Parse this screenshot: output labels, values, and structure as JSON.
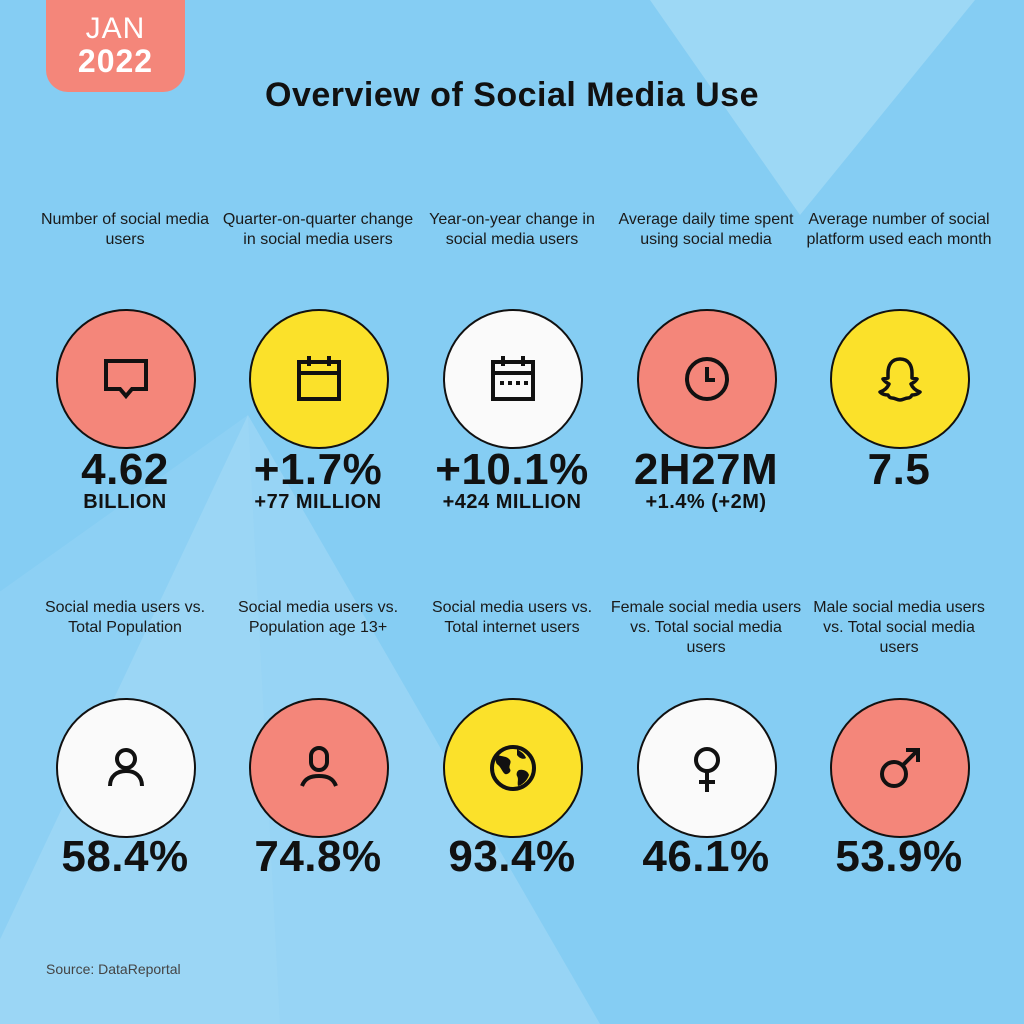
{
  "badge": {
    "month": "JAN",
    "year": "2022"
  },
  "title": "Overview of Social Media Use",
  "colors": {
    "background": "#85CDF3",
    "coral": "#F4867A",
    "yellow": "#FBE12A",
    "white": "#FAFAFA"
  },
  "stats_row1": [
    {
      "label": "Number of social media users",
      "icon": "chat-bubble-icon",
      "color": "coral",
      "value": "4.62",
      "sub": "BILLION"
    },
    {
      "label": "Quarter-on-quarter change in social media users",
      "icon": "calendar-icon",
      "color": "yellow",
      "value": "+1.7%",
      "sub": "+77 MILLION"
    },
    {
      "label": "Year-on-year change in social media users",
      "icon": "calendar-dots-icon",
      "color": "white",
      "value": "+10.1%",
      "sub": "+424 MILLION"
    },
    {
      "label": "Average daily time spent using social media",
      "icon": "clock-icon",
      "color": "coral",
      "value": "2H27M",
      "sub": "+1.4% (+2M)"
    },
    {
      "label": "Average number of social platform used each month",
      "icon": "snapchat-ghost-icon",
      "color": "yellow",
      "value": "7.5",
      "sub": ""
    }
  ],
  "stats_row2": [
    {
      "label": "Social media users vs. Total Population",
      "icon": "user-icon",
      "color": "white",
      "value": "58.4%"
    },
    {
      "label": "Social media users vs. Population age 13+",
      "icon": "user-outline-icon",
      "color": "coral",
      "value": "74.8%"
    },
    {
      "label": "Social media users vs. Total internet users",
      "icon": "globe-icon",
      "color": "yellow",
      "value": "93.4%"
    },
    {
      "label": "Female social media users vs. Total social media users",
      "icon": "female-symbol-icon",
      "color": "white",
      "value": "46.1%"
    },
    {
      "label": "Male social media users vs. Total social media users",
      "icon": "male-symbol-icon",
      "color": "coral",
      "value": "53.9%"
    }
  ],
  "source": "Source: DataReportal"
}
